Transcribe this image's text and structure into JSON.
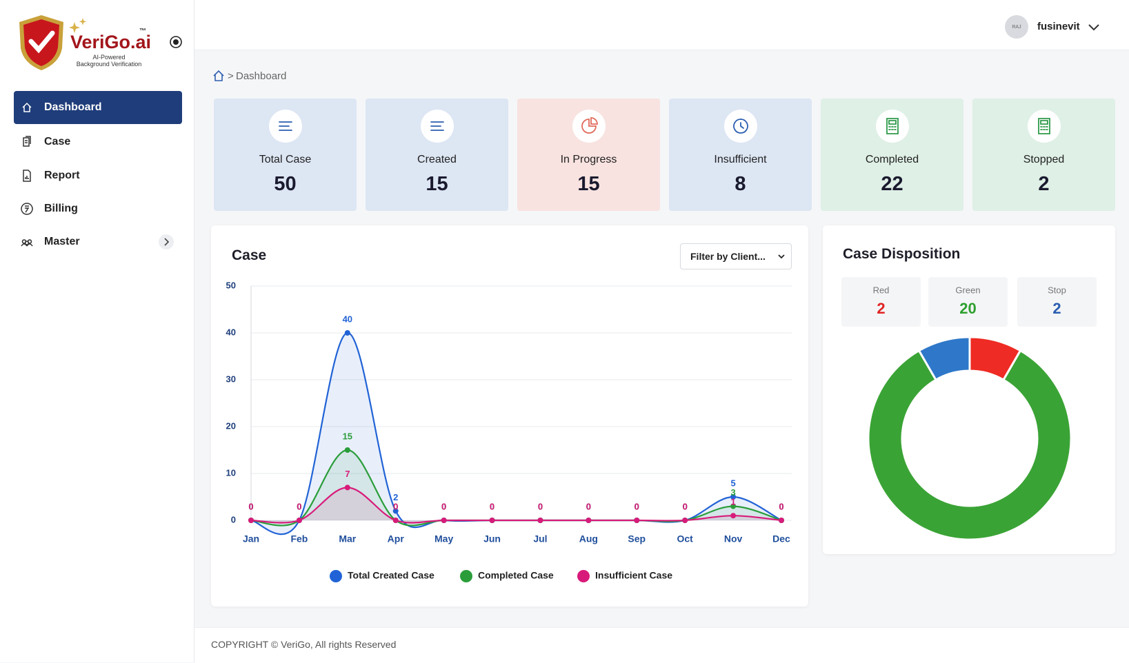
{
  "sidebar": {
    "brand": "VeriGo.ai",
    "trademark": "™",
    "tagline": [
      "AI-Powered",
      "Background Verification"
    ],
    "nav": [
      "Dashboard",
      "Case",
      "Report",
      "Billing",
      "Master"
    ]
  },
  "header": {
    "avatar": "RAJ",
    "user": "fusinevit"
  },
  "breadcrumb": {
    "separator": ">",
    "current": "Dashboard"
  },
  "stats": [
    {
      "label": "Total Case",
      "value": 50
    },
    {
      "label": "Created",
      "value": 15
    },
    {
      "label": "In Progress",
      "value": 15
    },
    {
      "label": "Insufficient",
      "value": 8
    },
    {
      "label": "Completed",
      "value": 22
    },
    {
      "label": "Stopped",
      "value": 2
    }
  ],
  "chart_data": [
    {
      "type": "line",
      "title": "Case",
      "filter": "Filter by Client...",
      "categories": [
        "Jan",
        "Feb",
        "Mar",
        "Apr",
        "May",
        "Jun",
        "Jul",
        "Aug",
        "Sep",
        "Oct",
        "Nov",
        "Dec"
      ],
      "series": [
        {
          "name": "Total Created Case",
          "color": "#2163d6",
          "values": [
            0,
            0,
            40,
            2,
            0,
            0,
            0,
            0,
            0,
            0,
            5,
            0
          ]
        },
        {
          "name": "Completed Case",
          "color": "#2a9d3a",
          "values": [
            0,
            0,
            15,
            0,
            0,
            0,
            0,
            0,
            0,
            0,
            3,
            0
          ]
        },
        {
          "name": "Insufficient Case",
          "color": "#d81b7a",
          "values": [
            0,
            0,
            7,
            0,
            0,
            0,
            0,
            0,
            0,
            0,
            1,
            0
          ]
        }
      ],
      "ylim": [
        0,
        50
      ],
      "yticks": [
        0,
        10,
        20,
        30,
        40,
        50
      ],
      "grid": true,
      "legend": "bottom"
    },
    {
      "type": "pie",
      "title": "Case Disposition",
      "categories": [
        "Red",
        "Green",
        "Stop"
      ],
      "values": [
        2,
        20,
        2
      ],
      "colors": [
        "#ee2b24",
        "#3aa335",
        "#2f78c9"
      ],
      "label_colors": [
        "#e02424",
        "#2ea02e",
        "#2a5db0"
      ],
      "donut": true
    }
  ],
  "footer": "COPYRIGHT © VeriGo, All rights Reserved"
}
